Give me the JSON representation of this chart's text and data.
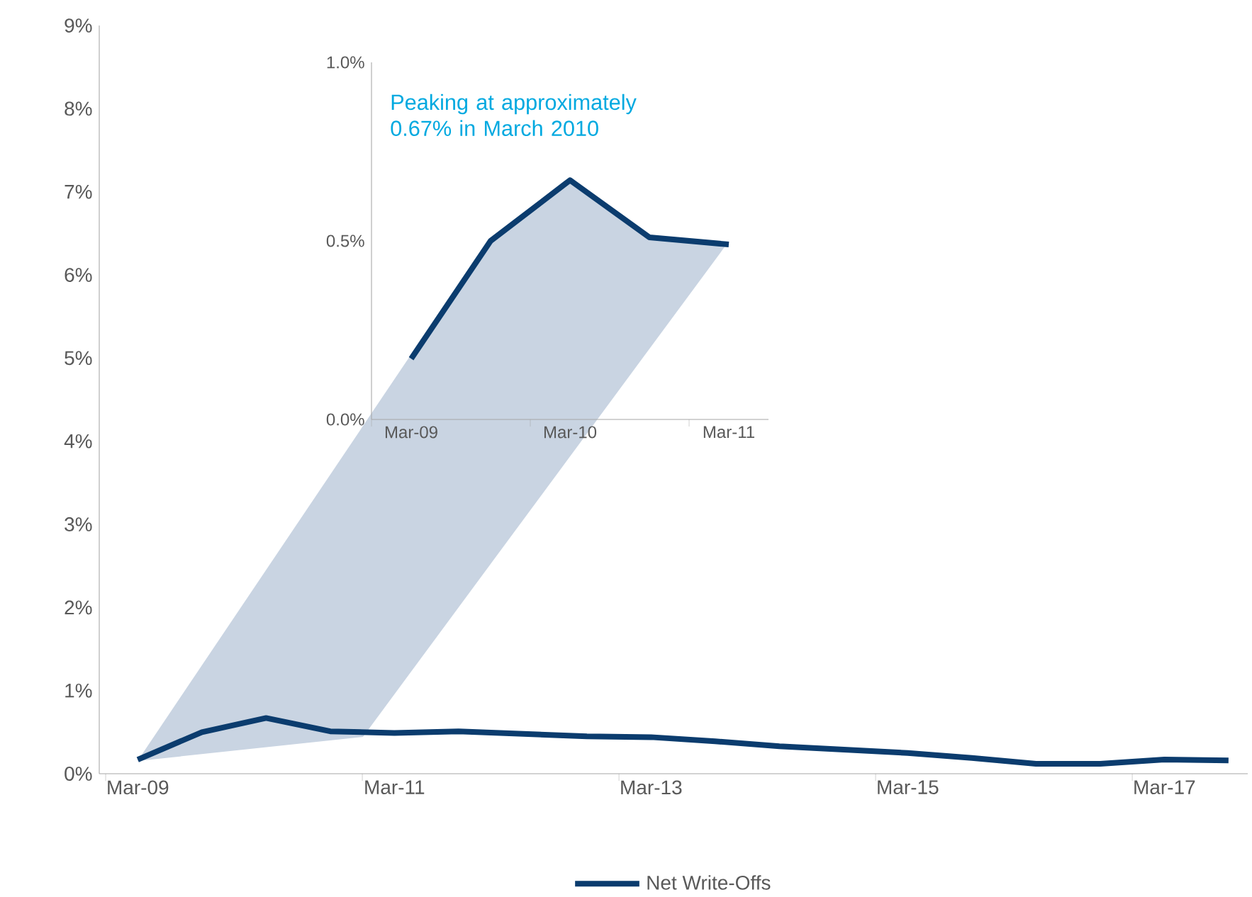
{
  "chart_data": [
    {
      "type": "line",
      "categories": [
        "Mar-09",
        null,
        null,
        null,
        "Mar-11",
        null,
        null,
        null,
        "Mar-13",
        null,
        null,
        null,
        "Mar-15",
        null,
        null,
        null,
        "Mar-17",
        null
      ],
      "series": [
        {
          "name": "Net Write-Offs",
          "color": "#0b3c6e",
          "values": [
            0.17,
            0.5,
            0.67,
            0.51,
            0.49,
            0.51,
            0.48,
            0.45,
            0.44,
            0.39,
            0.33,
            0.29,
            0.25,
            0.19,
            0.12,
            0.12,
            0.17,
            0.16
          ]
        }
      ],
      "ylim": [
        0,
        9
      ],
      "yticks": [
        {
          "value": 0,
          "label": "0%"
        },
        {
          "value": 1,
          "label": "1%"
        },
        {
          "value": 2,
          "label": "2%"
        },
        {
          "value": 3,
          "label": "3%"
        },
        {
          "value": 4,
          "label": "4%"
        },
        {
          "value": 5,
          "label": "5%"
        },
        {
          "value": 6,
          "label": "6%"
        },
        {
          "value": 7,
          "label": "7%"
        },
        {
          "value": 8,
          "label": "8%"
        },
        {
          "value": 9,
          "label": "9%"
        }
      ],
      "legend": "bottom"
    },
    {
      "type": "line",
      "categories": [
        "Mar-09",
        null,
        "Mar-10",
        null,
        "Mar-11"
      ],
      "series": [
        {
          "color": "#0b3c6e",
          "values": [
            0.17,
            0.5,
            0.67,
            0.51,
            0.49
          ]
        }
      ],
      "ylim": [
        0,
        1
      ],
      "yticks": [
        {
          "value": 0,
          "label": "0.0%"
        },
        {
          "value": 0.5,
          "label": "0.5%"
        },
        {
          "value": 1,
          "label": "1.0%"
        }
      ],
      "annotations": [
        "Peaking at approximately 0.67% in March 2010"
      ]
    }
  ]
}
